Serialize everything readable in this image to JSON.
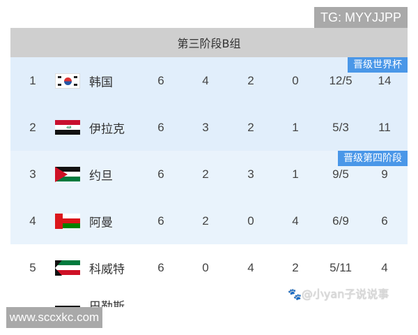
{
  "table": {
    "title": "第三阶段B组",
    "badges": {
      "qualify": "晋级世界杯",
      "playoff": "晋级第四阶段"
    },
    "rows": [
      {
        "rank": "1",
        "flag": "south-korea-flag",
        "team": "韩国",
        "played": "6",
        "won": "4",
        "drawn": "2",
        "lost": "0",
        "goals": "12/5",
        "points": "14"
      },
      {
        "rank": "2",
        "flag": "iraq-flag",
        "team": "伊拉克",
        "played": "6",
        "won": "3",
        "drawn": "2",
        "lost": "1",
        "goals": "5/3",
        "points": "11"
      },
      {
        "rank": "3",
        "flag": "jordan-flag",
        "team": "约旦",
        "played": "6",
        "won": "2",
        "drawn": "3",
        "lost": "1",
        "goals": "9/5",
        "points": "9"
      },
      {
        "rank": "4",
        "flag": "oman-flag",
        "team": "阿曼",
        "played": "6",
        "won": "2",
        "drawn": "0",
        "lost": "4",
        "goals": "6/9",
        "points": "6"
      },
      {
        "rank": "5",
        "flag": "kuwait-flag",
        "team": "科威特",
        "played": "6",
        "won": "0",
        "drawn": "4",
        "lost": "2",
        "goals": "5/11",
        "points": "4"
      }
    ],
    "partial_row_team": "巴勒斯"
  },
  "watermarks": {
    "tg": "TG: MYYJJPP",
    "site": "www.sccxkc.com",
    "author": "@小yan子说说事"
  },
  "colors": {
    "header_bg": "#cfcfcf",
    "qualify_bg": "#e1eefb",
    "playoff_bg": "#e9f3fc",
    "badge": "#4a97e8"
  }
}
